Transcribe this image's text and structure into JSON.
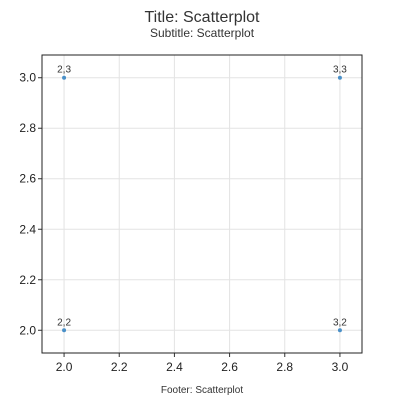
{
  "chart_data": {
    "type": "scatter",
    "title": "Title: Scatterplot",
    "subtitle": "Subtitle: Scatterplot",
    "footer": "Footer: Scatterplot",
    "xlabel": "",
    "ylabel": "",
    "xlim": [
      1.92,
      3.08
    ],
    "ylim": [
      1.91,
      3.09
    ],
    "x_ticks": [
      2.0,
      2.2,
      2.4,
      2.6,
      2.8,
      3.0
    ],
    "x_tick_labels": [
      "2.0",
      "2.2",
      "2.4",
      "2.6",
      "2.8",
      "3.0"
    ],
    "y_ticks": [
      2.0,
      2.2,
      2.4,
      2.6,
      2.8,
      3.0
    ],
    "y_tick_labels": [
      "2.0",
      "2.2",
      "2.4",
      "2.6",
      "2.8",
      "3.0"
    ],
    "grid": true,
    "legend": "none",
    "point_color": "#4a90c8",
    "series": [
      {
        "points": [
          {
            "x": 2,
            "y": 3,
            "label": "2,3"
          },
          {
            "x": 3,
            "y": 3,
            "label": "3,3"
          },
          {
            "x": 2,
            "y": 2,
            "label": "2,2"
          },
          {
            "x": 3,
            "y": 2,
            "label": "3,2"
          }
        ]
      }
    ]
  }
}
